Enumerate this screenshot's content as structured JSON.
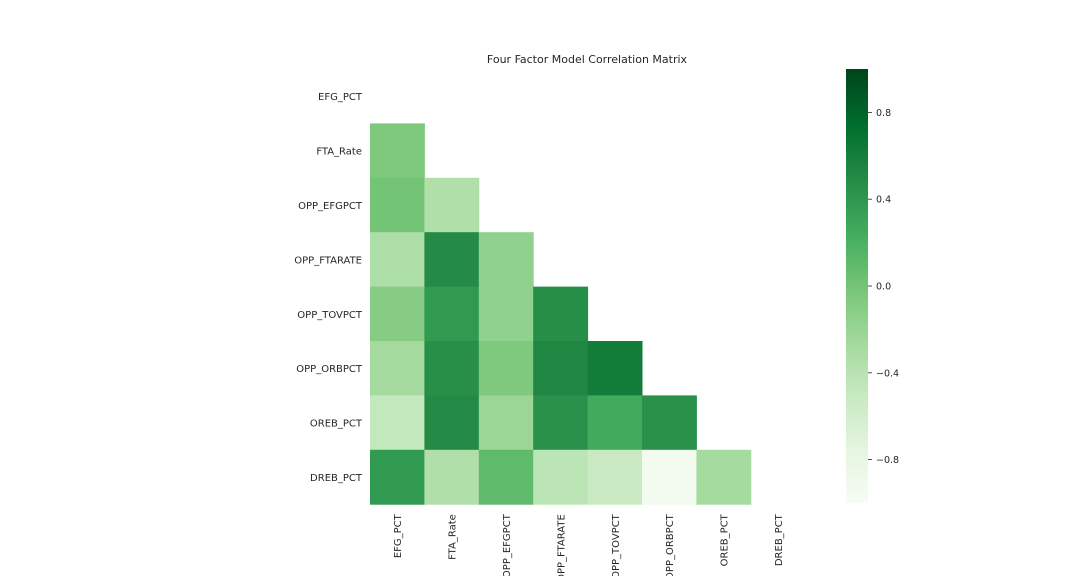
{
  "chart_data": {
    "type": "heatmap",
    "title": "Four Factor Model Correlation Matrix",
    "variables": [
      "EFG_PCT",
      "FTA_Rate",
      "OPP_EFGPCT",
      "OPP_FTARATE",
      "OPP_TOVPCT",
      "OPP_ORBPCT",
      "OREB_PCT",
      "DREB_PCT"
    ],
    "mask": "upper-triangle-including-diagonal",
    "lower_triangle_values": [
      [],
      [
        -0.06
      ],
      [
        0.0,
        -0.35
      ],
      [
        -0.33,
        0.5,
        -0.16
      ],
      [
        -0.1,
        0.38,
        -0.16,
        0.48
      ],
      [
        -0.27,
        0.47,
        -0.06,
        0.53,
        0.62
      ],
      [
        -0.48,
        0.51,
        -0.22,
        0.45,
        0.25,
        0.45
      ],
      [
        0.38,
        -0.35,
        0.1,
        -0.43,
        -0.51,
        -0.94,
        -0.28
      ]
    ],
    "colorbar": {
      "cmap": "Greens",
      "vmin": -1.0,
      "vmax": 1.0,
      "ticks": [
        "0.8",
        "0.4",
        "0.0",
        "−0.4",
        "−0.8"
      ],
      "tick_values": [
        0.8,
        0.4,
        0.0,
        -0.4,
        -0.8
      ]
    },
    "grid": false
  }
}
